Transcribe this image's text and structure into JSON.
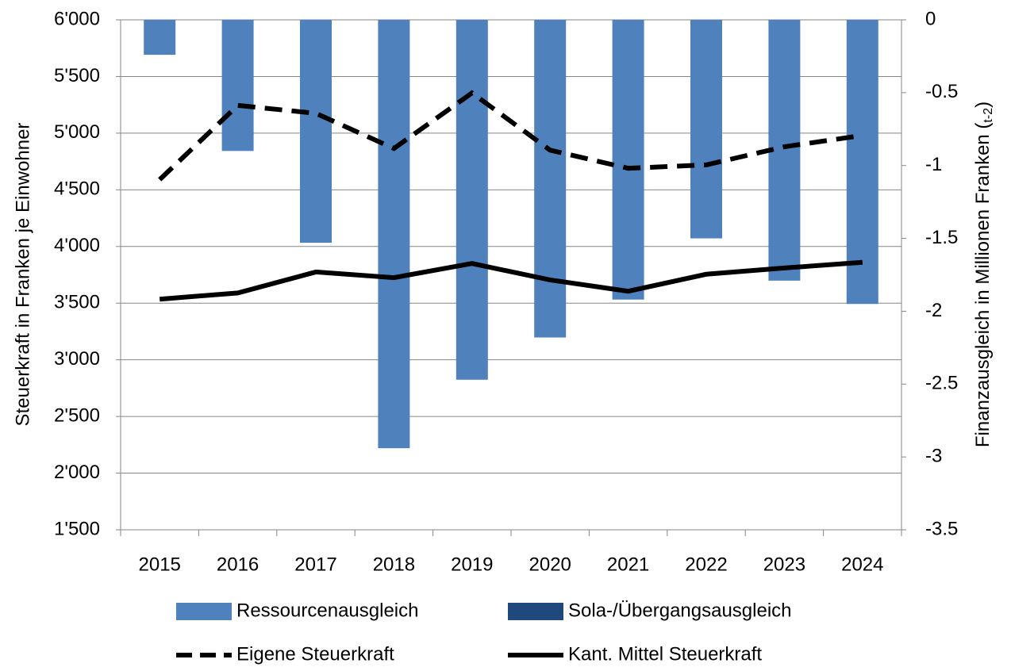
{
  "chart_data": {
    "type": "bar",
    "categories": [
      "2015",
      "2016",
      "2017",
      "2018",
      "2019",
      "2020",
      "2021",
      "2022",
      "2023",
      "2024"
    ],
    "ylabel": "Steuerkraft in Franken je Einwohner",
    "y2label": [
      "Finanzausgleich in Millionen Franken (",
      "t-2",
      ")"
    ],
    "ylim": [
      1500,
      6000
    ],
    "yticks": [
      {
        "value": 1500,
        "label": "1'500"
      },
      {
        "value": 2000,
        "label": "2'000"
      },
      {
        "value": 2500,
        "label": "2'500"
      },
      {
        "value": 3000,
        "label": "3'000"
      },
      {
        "value": 3500,
        "label": "3'500"
      },
      {
        "value": 4000,
        "label": "4'000"
      },
      {
        "value": 4500,
        "label": "4'500"
      },
      {
        "value": 5000,
        "label": "5'000"
      },
      {
        "value": 5500,
        "label": "5'500"
      },
      {
        "value": 6000,
        "label": "6'000"
      }
    ],
    "y2lim": [
      -3.5,
      0
    ],
    "y2ticks": [
      0,
      -0.5,
      -1,
      -1.5,
      -2,
      -2.5,
      -3,
      -3.5
    ],
    "grid": true,
    "series": [
      {
        "name": "Ressourcenausgleich",
        "type": "bar",
        "axis": "y2",
        "color": "#4f81bd",
        "values": [
          -0.24,
          -0.9,
          -1.53,
          -2.94,
          -2.47,
          -2.18,
          -1.92,
          -1.5,
          -1.79,
          -1.95
        ]
      },
      {
        "name": "Sola-/Übergangsausgleich",
        "type": "bar",
        "axis": "y2",
        "color": "#1f497d",
        "values": [
          null,
          null,
          null,
          null,
          null,
          null,
          null,
          null,
          null,
          null
        ]
      },
      {
        "name": "Eigene Steuerkraft",
        "type": "line",
        "style": "dashed",
        "color": "#000000",
        "values": [
          4590,
          5245,
          5175,
          4865,
          5355,
          4850,
          4690,
          4720,
          4880,
          4980
        ]
      },
      {
        "name": "Kant. Mittel Steuerkraft",
        "type": "line",
        "style": "solid",
        "color": "#000000",
        "values": [
          3535,
          3590,
          3775,
          3725,
          3850,
          3705,
          3605,
          3755,
          3810,
          3860
        ]
      }
    ]
  }
}
